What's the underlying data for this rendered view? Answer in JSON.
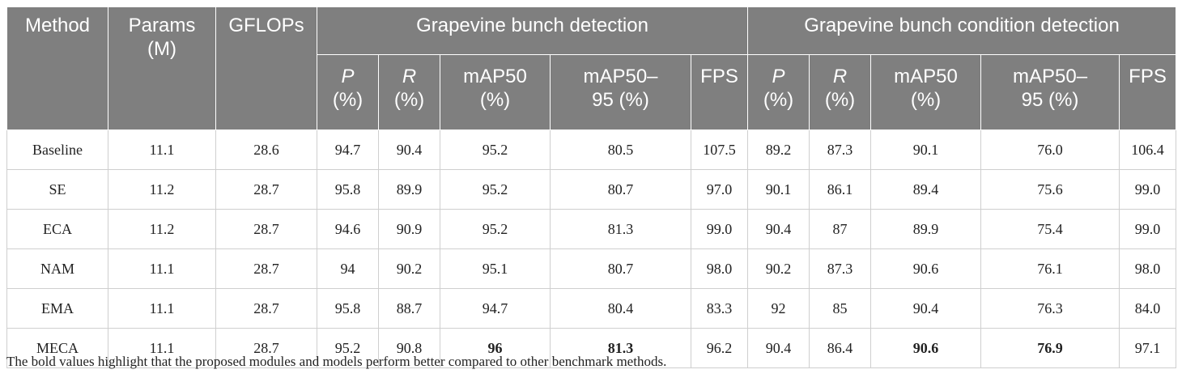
{
  "header": {
    "method": "Method",
    "params_line1": "Params",
    "params_line2": "(M)",
    "gflops": "GFLOPs",
    "group1": "Grapevine bunch detection",
    "group2": "Grapevine bunch condition detection",
    "metrics": [
      {
        "l1": "P",
        "l2": "(%)",
        "italic": true
      },
      {
        "l1": "R",
        "l2": "(%)",
        "italic": true
      },
      {
        "l1": "mAP50",
        "l2": "(%)",
        "italic": false
      },
      {
        "l1": "mAP50–",
        "l2": "95 (%)",
        "italic": false
      },
      {
        "l1": "FPS",
        "l2": "",
        "italic": false
      }
    ]
  },
  "rows": [
    {
      "method": "Baseline",
      "params": "11.1",
      "gflops": "28.6",
      "g1": [
        "94.7",
        "90.4",
        "95.2",
        "80.5",
        "107.5"
      ],
      "g2": [
        "89.2",
        "87.3",
        "90.1",
        "76.0",
        "106.4"
      ]
    },
    {
      "method": "SE",
      "params": "11.2",
      "gflops": "28.7",
      "g1": [
        "95.8",
        "89.9",
        "95.2",
        "80.7",
        "97.0"
      ],
      "g2": [
        "90.1",
        "86.1",
        "89.4",
        "75.6",
        "99.0"
      ]
    },
    {
      "method": "ECA",
      "params": "11.2",
      "gflops": "28.7",
      "g1": [
        "94.6",
        "90.9",
        "95.2",
        "81.3",
        "99.0"
      ],
      "g2": [
        "90.4",
        "87",
        "89.9",
        "75.4",
        "99.0"
      ]
    },
    {
      "method": "NAM",
      "params": "11.1",
      "gflops": "28.7",
      "g1": [
        "94",
        "90.2",
        "95.1",
        "80.7",
        "98.0"
      ],
      "g2": [
        "90.2",
        "87.3",
        "90.6",
        "76.1",
        "98.0"
      ]
    },
    {
      "method": "EMA",
      "params": "11.1",
      "gflops": "28.7",
      "g1": [
        "95.8",
        "88.7",
        "94.7",
        "80.4",
        "83.3"
      ],
      "g2": [
        "92",
        "85",
        "90.4",
        "76.3",
        "84.0"
      ]
    },
    {
      "method": "MECA",
      "params": "11.1",
      "gflops": "28.7",
      "g1": [
        "95.2",
        "90.8",
        "96",
        "81.3",
        "96.2"
      ],
      "g2": [
        "90.4",
        "86.4",
        "90.6",
        "76.9",
        "97.1"
      ]
    }
  ],
  "bold_cells": {
    "5": {
      "g1": [
        2,
        3
      ],
      "g2": [
        2,
        3
      ]
    }
  },
  "footnote": "The bold values highlight that the proposed modules and models perform better compared to other benchmark methods."
}
